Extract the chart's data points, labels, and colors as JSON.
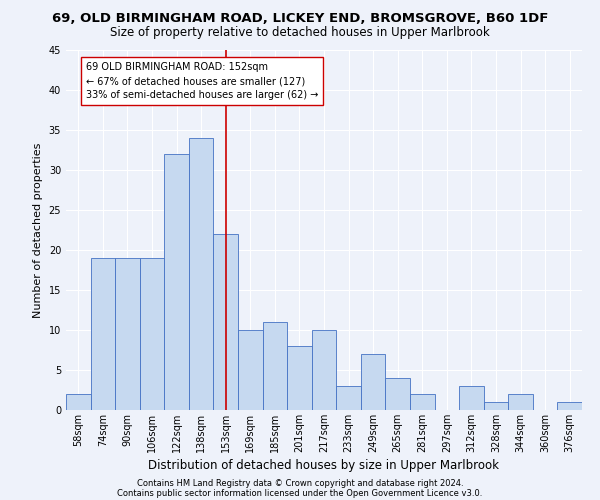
{
  "title1": "69, OLD BIRMINGHAM ROAD, LICKEY END, BROMSGROVE, B60 1DF",
  "title2": "Size of property relative to detached houses in Upper Marlbrook",
  "xlabel": "Distribution of detached houses by size in Upper Marlbrook",
  "ylabel": "Number of detached properties",
  "footnote1": "Contains HM Land Registry data © Crown copyright and database right 2024.",
  "footnote2": "Contains public sector information licensed under the Open Government Licence v3.0.",
  "bar_labels": [
    "58sqm",
    "74sqm",
    "90sqm",
    "106sqm",
    "122sqm",
    "138sqm",
    "153sqm",
    "169sqm",
    "185sqm",
    "201sqm",
    "217sqm",
    "233sqm",
    "249sqm",
    "265sqm",
    "281sqm",
    "297sqm",
    "312sqm",
    "328sqm",
    "344sqm",
    "360sqm",
    "376sqm"
  ],
  "bar_values": [
    2,
    19,
    19,
    19,
    32,
    34,
    22,
    10,
    11,
    8,
    10,
    3,
    7,
    4,
    2,
    0,
    3,
    1,
    2,
    0,
    1
  ],
  "bar_color": "#c6d9f0",
  "bar_edge_color": "#4472c4",
  "highlight_index": 6,
  "highlight_line_color": "#cc0000",
  "annotation_text": "69 OLD BIRMINGHAM ROAD: 152sqm\n← 67% of detached houses are smaller (127)\n33% of semi-detached houses are larger (62) →",
  "annotation_box_color": "#ffffff",
  "annotation_box_edge": "#cc0000",
  "ylim": [
    0,
    45
  ],
  "yticks": [
    0,
    5,
    10,
    15,
    20,
    25,
    30,
    35,
    40,
    45
  ],
  "background_color": "#eef2fa",
  "grid_color": "#ffffff",
  "title1_fontsize": 9.5,
  "title2_fontsize": 8.5,
  "xlabel_fontsize": 8.5,
  "ylabel_fontsize": 8,
  "tick_fontsize": 7,
  "annotation_fontsize": 7,
  "footnote_fontsize": 6
}
